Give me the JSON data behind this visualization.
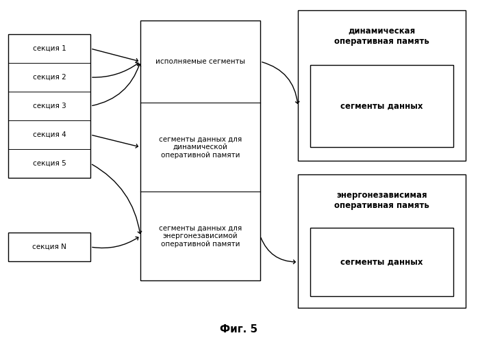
{
  "background_color": "#ffffff",
  "fig_width": 6.98,
  "fig_height": 5.0,
  "dpi": 100,
  "title": "Фиг. 5",
  "sections_left": [
    "секция 1",
    "секция 2",
    "секция 3",
    "секция 4",
    "секция 5"
  ],
  "section_N": "секция N",
  "center_box_label_top": "исполняемые сегменты",
  "center_box_label_mid": "сегменты данных для\nдинамической\nоперативной памяти",
  "center_box_label_bot": "сегменты данных для\nэнергонезависимой\nоперативной памяти",
  "right_top_title": "динамическая\nоперативная память",
  "right_top_inner": "сегменты данных",
  "right_bot_title": "энергонезависимая\nоперативная память",
  "right_bot_inner": "сегменты данных",
  "font_size_main": 7.5,
  "font_size_bold": 8.5
}
